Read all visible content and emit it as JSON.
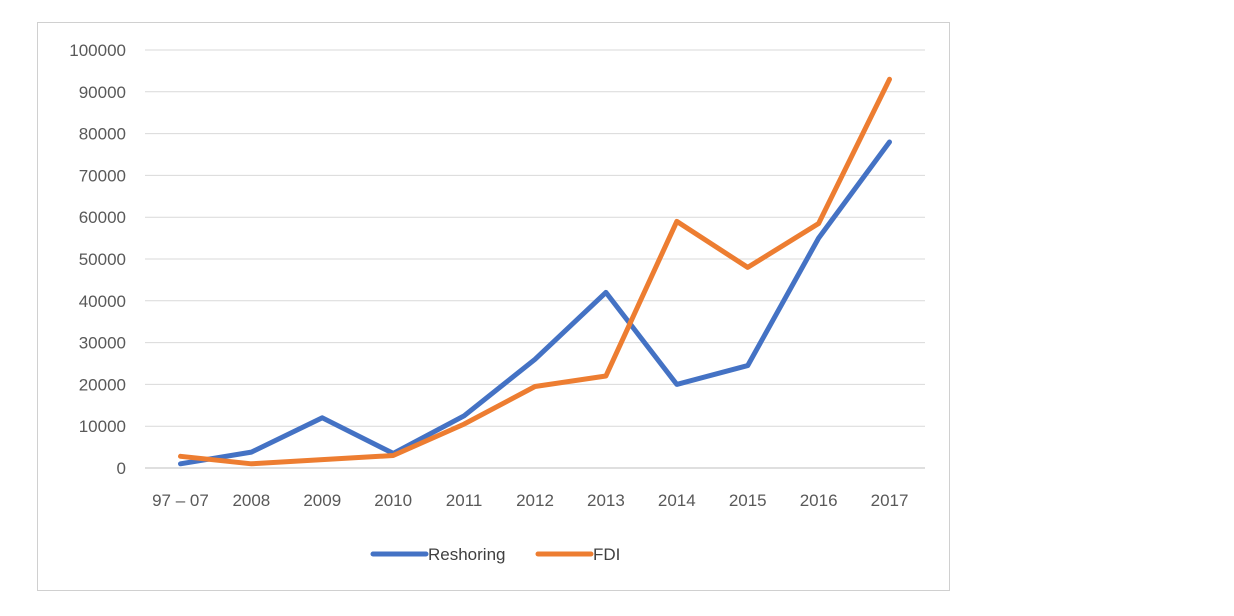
{
  "chart_data": {
    "type": "line",
    "title": "",
    "xlabel": "",
    "ylabel": "",
    "categories": [
      "97 – 07",
      "2008",
      "2009",
      "2010",
      "2011",
      "2012",
      "2013",
      "2014",
      "2015",
      "2016",
      "2017"
    ],
    "ylim": [
      0,
      100000
    ],
    "yticks": [
      0,
      10000,
      20000,
      30000,
      40000,
      50000,
      60000,
      70000,
      80000,
      90000,
      100000
    ],
    "grid": true,
    "legend_position": "bottom",
    "series": [
      {
        "name": "Reshoring",
        "color": "#4472C4",
        "values": [
          1000,
          3800,
          12000,
          3500,
          12500,
          26000,
          42000,
          20000,
          24500,
          55000,
          78000
        ]
      },
      {
        "name": "FDI",
        "color": "#ED7D31",
        "values": [
          2800,
          1000,
          2000,
          3000,
          10500,
          19500,
          22000,
          59000,
          48000,
          58500,
          93000
        ]
      }
    ]
  }
}
